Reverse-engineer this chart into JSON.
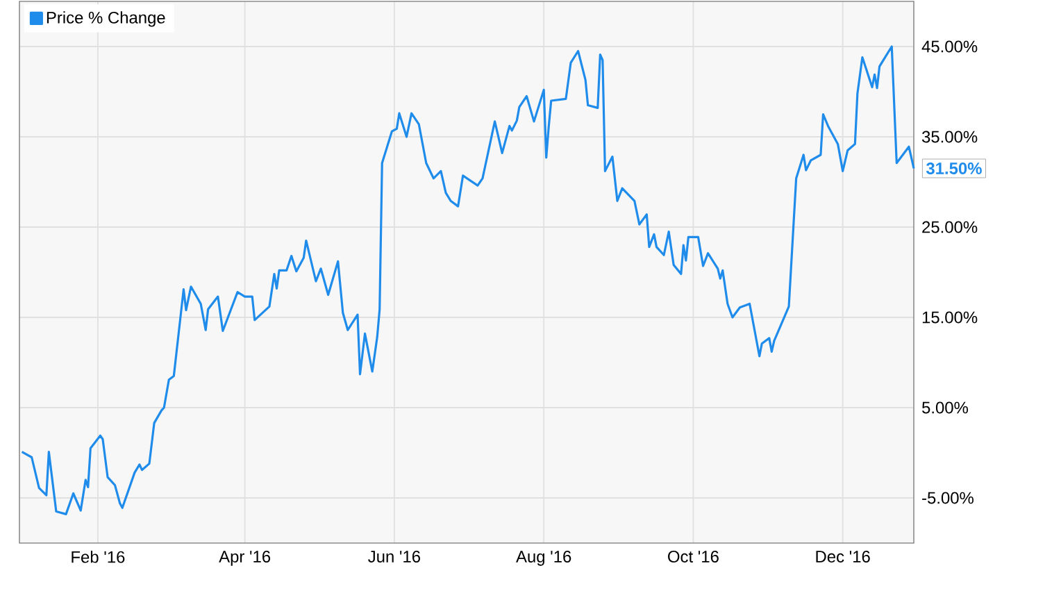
{
  "chart_data": {
    "type": "line",
    "legend": "top left",
    "grid": true,
    "xlim": [
      "2015-12-31",
      "2016-12-30"
    ],
    "ylim": [
      -10,
      50
    ],
    "xticks": [
      {
        "value": "2016-02-01",
        "label": "Feb '16"
      },
      {
        "value": "2016-04-01",
        "label": "Apr '16"
      },
      {
        "value": "2016-06-01",
        "label": "Jun '16"
      },
      {
        "value": "2016-08-01",
        "label": "Aug '16"
      },
      {
        "value": "2016-10-01",
        "label": "Oct '16"
      },
      {
        "value": "2016-12-01",
        "label": "Dec '16"
      }
    ],
    "yticks": [
      {
        "value": -5,
        "label": "-5.00%"
      },
      {
        "value": 5,
        "label": "5.00%"
      },
      {
        "value": 15,
        "label": "15.00%"
      },
      {
        "value": 25,
        "label": "25.00%"
      },
      {
        "value": 35,
        "label": "35.00%"
      },
      {
        "value": 45,
        "label": "45.00%"
      }
    ],
    "annotations": [
      {
        "text": "31.50%",
        "x": "2016-12-30",
        "y": 31.5
      }
    ],
    "x": [
      "2016-01-01",
      "2016-01-05",
      "2016-01-08",
      "2016-01-11",
      "2016-01-12",
      "2016-01-15",
      "2016-01-19",
      "2016-01-22",
      "2016-01-25",
      "2016-01-27",
      "2016-01-28",
      "2016-01-29",
      "2016-02-02",
      "2016-02-03",
      "2016-02-05",
      "2016-02-08",
      "2016-02-10",
      "2016-02-11",
      "2016-02-16",
      "2016-02-18",
      "2016-02-19",
      "2016-02-22",
      "2016-02-24",
      "2016-02-27",
      "2016-02-28",
      "2016-03-01",
      "2016-03-03",
      "2016-03-07",
      "2016-03-08",
      "2016-03-10",
      "2016-03-14",
      "2016-03-16",
      "2016-03-17",
      "2016-03-21",
      "2016-03-23",
      "2016-03-29",
      "2016-04-01",
      "2016-04-04",
      "2016-04-05",
      "2016-04-07",
      "2016-04-11",
      "2016-04-13",
      "2016-04-14",
      "2016-04-15",
      "2016-04-18",
      "2016-04-20",
      "2016-04-22",
      "2016-04-25",
      "2016-04-26",
      "2016-04-30",
      "2016-05-02",
      "2016-05-05",
      "2016-05-09",
      "2016-05-11",
      "2016-05-13",
      "2016-05-17",
      "2016-05-18",
      "2016-05-20",
      "2016-05-23",
      "2016-05-25",
      "2016-05-26",
      "2016-05-27",
      "2016-05-31",
      "2016-06-02",
      "2016-06-03",
      "2016-06-06",
      "2016-06-08",
      "2016-06-11",
      "2016-06-14",
      "2016-06-17",
      "2016-06-20",
      "2016-06-22",
      "2016-06-24",
      "2016-06-27",
      "2016-06-29",
      "2016-07-05",
      "2016-07-07",
      "2016-07-12",
      "2016-07-15",
      "2016-07-18",
      "2016-07-19",
      "2016-07-21",
      "2016-07-22",
      "2016-07-25",
      "2016-07-28",
      "2016-08-01",
      "2016-08-02",
      "2016-08-03",
      "2016-08-04",
      "2016-08-10",
      "2016-08-12",
      "2016-08-15",
      "2016-08-18",
      "2016-08-19",
      "2016-08-23",
      "2016-08-24",
      "2016-08-25",
      "2016-08-26",
      "2016-08-29",
      "2016-08-31",
      "2016-09-02",
      "2016-09-07",
      "2016-09-09",
      "2016-09-12",
      "2016-09-13",
      "2016-09-15",
      "2016-09-16",
      "2016-09-19",
      "2016-09-21",
      "2016-09-23",
      "2016-09-26",
      "2016-09-27",
      "2016-09-28",
      "2016-09-29",
      "2016-10-03",
      "2016-10-05",
      "2016-10-07",
      "2016-10-11",
      "2016-10-12",
      "2016-10-13",
      "2016-10-15",
      "2016-10-17",
      "2016-10-20",
      "2016-10-24",
      "2016-10-28",
      "2016-10-29",
      "2016-11-01",
      "2016-11-02",
      "2016-11-03",
      "2016-11-09",
      "2016-11-12",
      "2016-11-15",
      "2016-11-16",
      "2016-11-18",
      "2016-11-22",
      "2016-11-23",
      "2016-11-25",
      "2016-11-29",
      "2016-12-01",
      "2016-12-03",
      "2016-12-06",
      "2016-12-07",
      "2016-12-09",
      "2016-12-13",
      "2016-12-14",
      "2016-12-15",
      "2016-12-16",
      "2016-12-21",
      "2016-12-23",
      "2016-12-28",
      "2016-12-30"
    ],
    "series": [
      {
        "name": "Price % Change",
        "color": "#1f8ceb",
        "values": [
          0.1,
          -0.5,
          -3.9,
          -4.7,
          0.1,
          -6.5,
          -6.8,
          -4.5,
          -6.4,
          -3,
          -3.8,
          0.5,
          1.9,
          1.5,
          -2.7,
          -3.6,
          -5.6,
          -6.1,
          -2.2,
          -1.3,
          -1.9,
          -1.2,
          3.3,
          4.7,
          5,
          8.1,
          8.5,
          18.1,
          15.8,
          18.4,
          16.5,
          13.6,
          15.9,
          17.3,
          13.5,
          17.8,
          17.3,
          17.3,
          14.7,
          15.2,
          16.2,
          19.8,
          18.2,
          20.2,
          20.2,
          21.8,
          20.1,
          21.6,
          23.5,
          19,
          20.4,
          17.5,
          21.2,
          15.5,
          13.6,
          15.3,
          8.7,
          13.2,
          9,
          12.8,
          15.9,
          32.1,
          35.6,
          35.9,
          37.6,
          35,
          37.6,
          36.4,
          32.1,
          30.4,
          31.2,
          28.8,
          27.9,
          27.3,
          30.7,
          29.6,
          30.4,
          36.7,
          33.2,
          36.2,
          35.7,
          36.8,
          38.3,
          39.5,
          36.7,
          40.2,
          32.7,
          36.1,
          39,
          39.2,
          43.2,
          44.5,
          41.3,
          38.5,
          38.2,
          44.1,
          43.5,
          31.2,
          32.8,
          27.9,
          29.3,
          27.9,
          25.3,
          26.4,
          22.8,
          24.2,
          22.8,
          21.9,
          24.5,
          20.8,
          19.8,
          23,
          21.3,
          23.9,
          23.9,
          20.7,
          22.1,
          20.4,
          19.3,
          20.2,
          16.5,
          15,
          16.1,
          16.5,
          10.7,
          12.1,
          12.7,
          11.2,
          12.4,
          16.2,
          30.4,
          33,
          31.3,
          32.4,
          33,
          37.5,
          36.2,
          34.2,
          31.2,
          33.5,
          34.2,
          39.8,
          43.8,
          40.5,
          41.9,
          40.4,
          42.8,
          45,
          32.1,
          33.9,
          31.5
        ]
      }
    ]
  }
}
